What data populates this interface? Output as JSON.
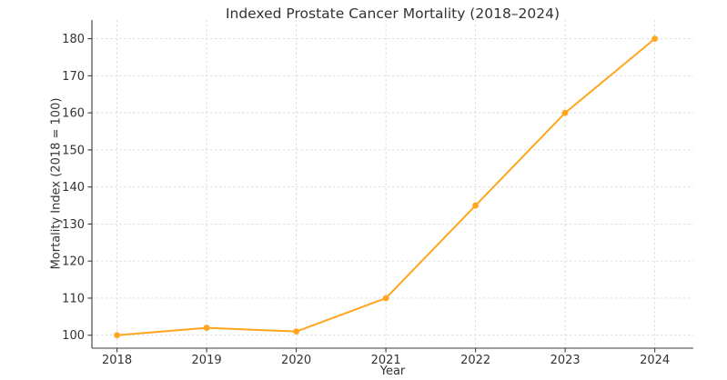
{
  "title": "Indexed Prostate Cancer Mortality (2018–2024)",
  "chart_data": {
    "type": "line",
    "title": "Indexed Prostate Cancer Mortality (2018–2024)",
    "xlabel": "Year",
    "ylabel": "Mortality Index (2018 = 100)",
    "categories": [
      "2018",
      "2019",
      "2020",
      "2021",
      "2022",
      "2023",
      "2024"
    ],
    "x": [
      2018,
      2019,
      2020,
      2021,
      2022,
      2023,
      2024
    ],
    "series": [
      {
        "name": "Mortality Index",
        "values": [
          100,
          102,
          101,
          110,
          135,
          160,
          180
        ]
      }
    ],
    "yticks": [
      100,
      110,
      120,
      130,
      140,
      150,
      160,
      170,
      180
    ],
    "xlim": [
      2017.72,
      2024.43
    ],
    "ylim": [
      96.5,
      185.05
    ],
    "grid": true,
    "grid_style": "dashed",
    "legend": "none",
    "marker": "circle",
    "colors": {
      "line": "#FFA51E",
      "marker": "#FFA51E",
      "grid": "#d9d9d9",
      "spine": "#3c3c3c",
      "tick": "#3c3c3c",
      "text": "#333333",
      "background": "#ffffff"
    }
  }
}
